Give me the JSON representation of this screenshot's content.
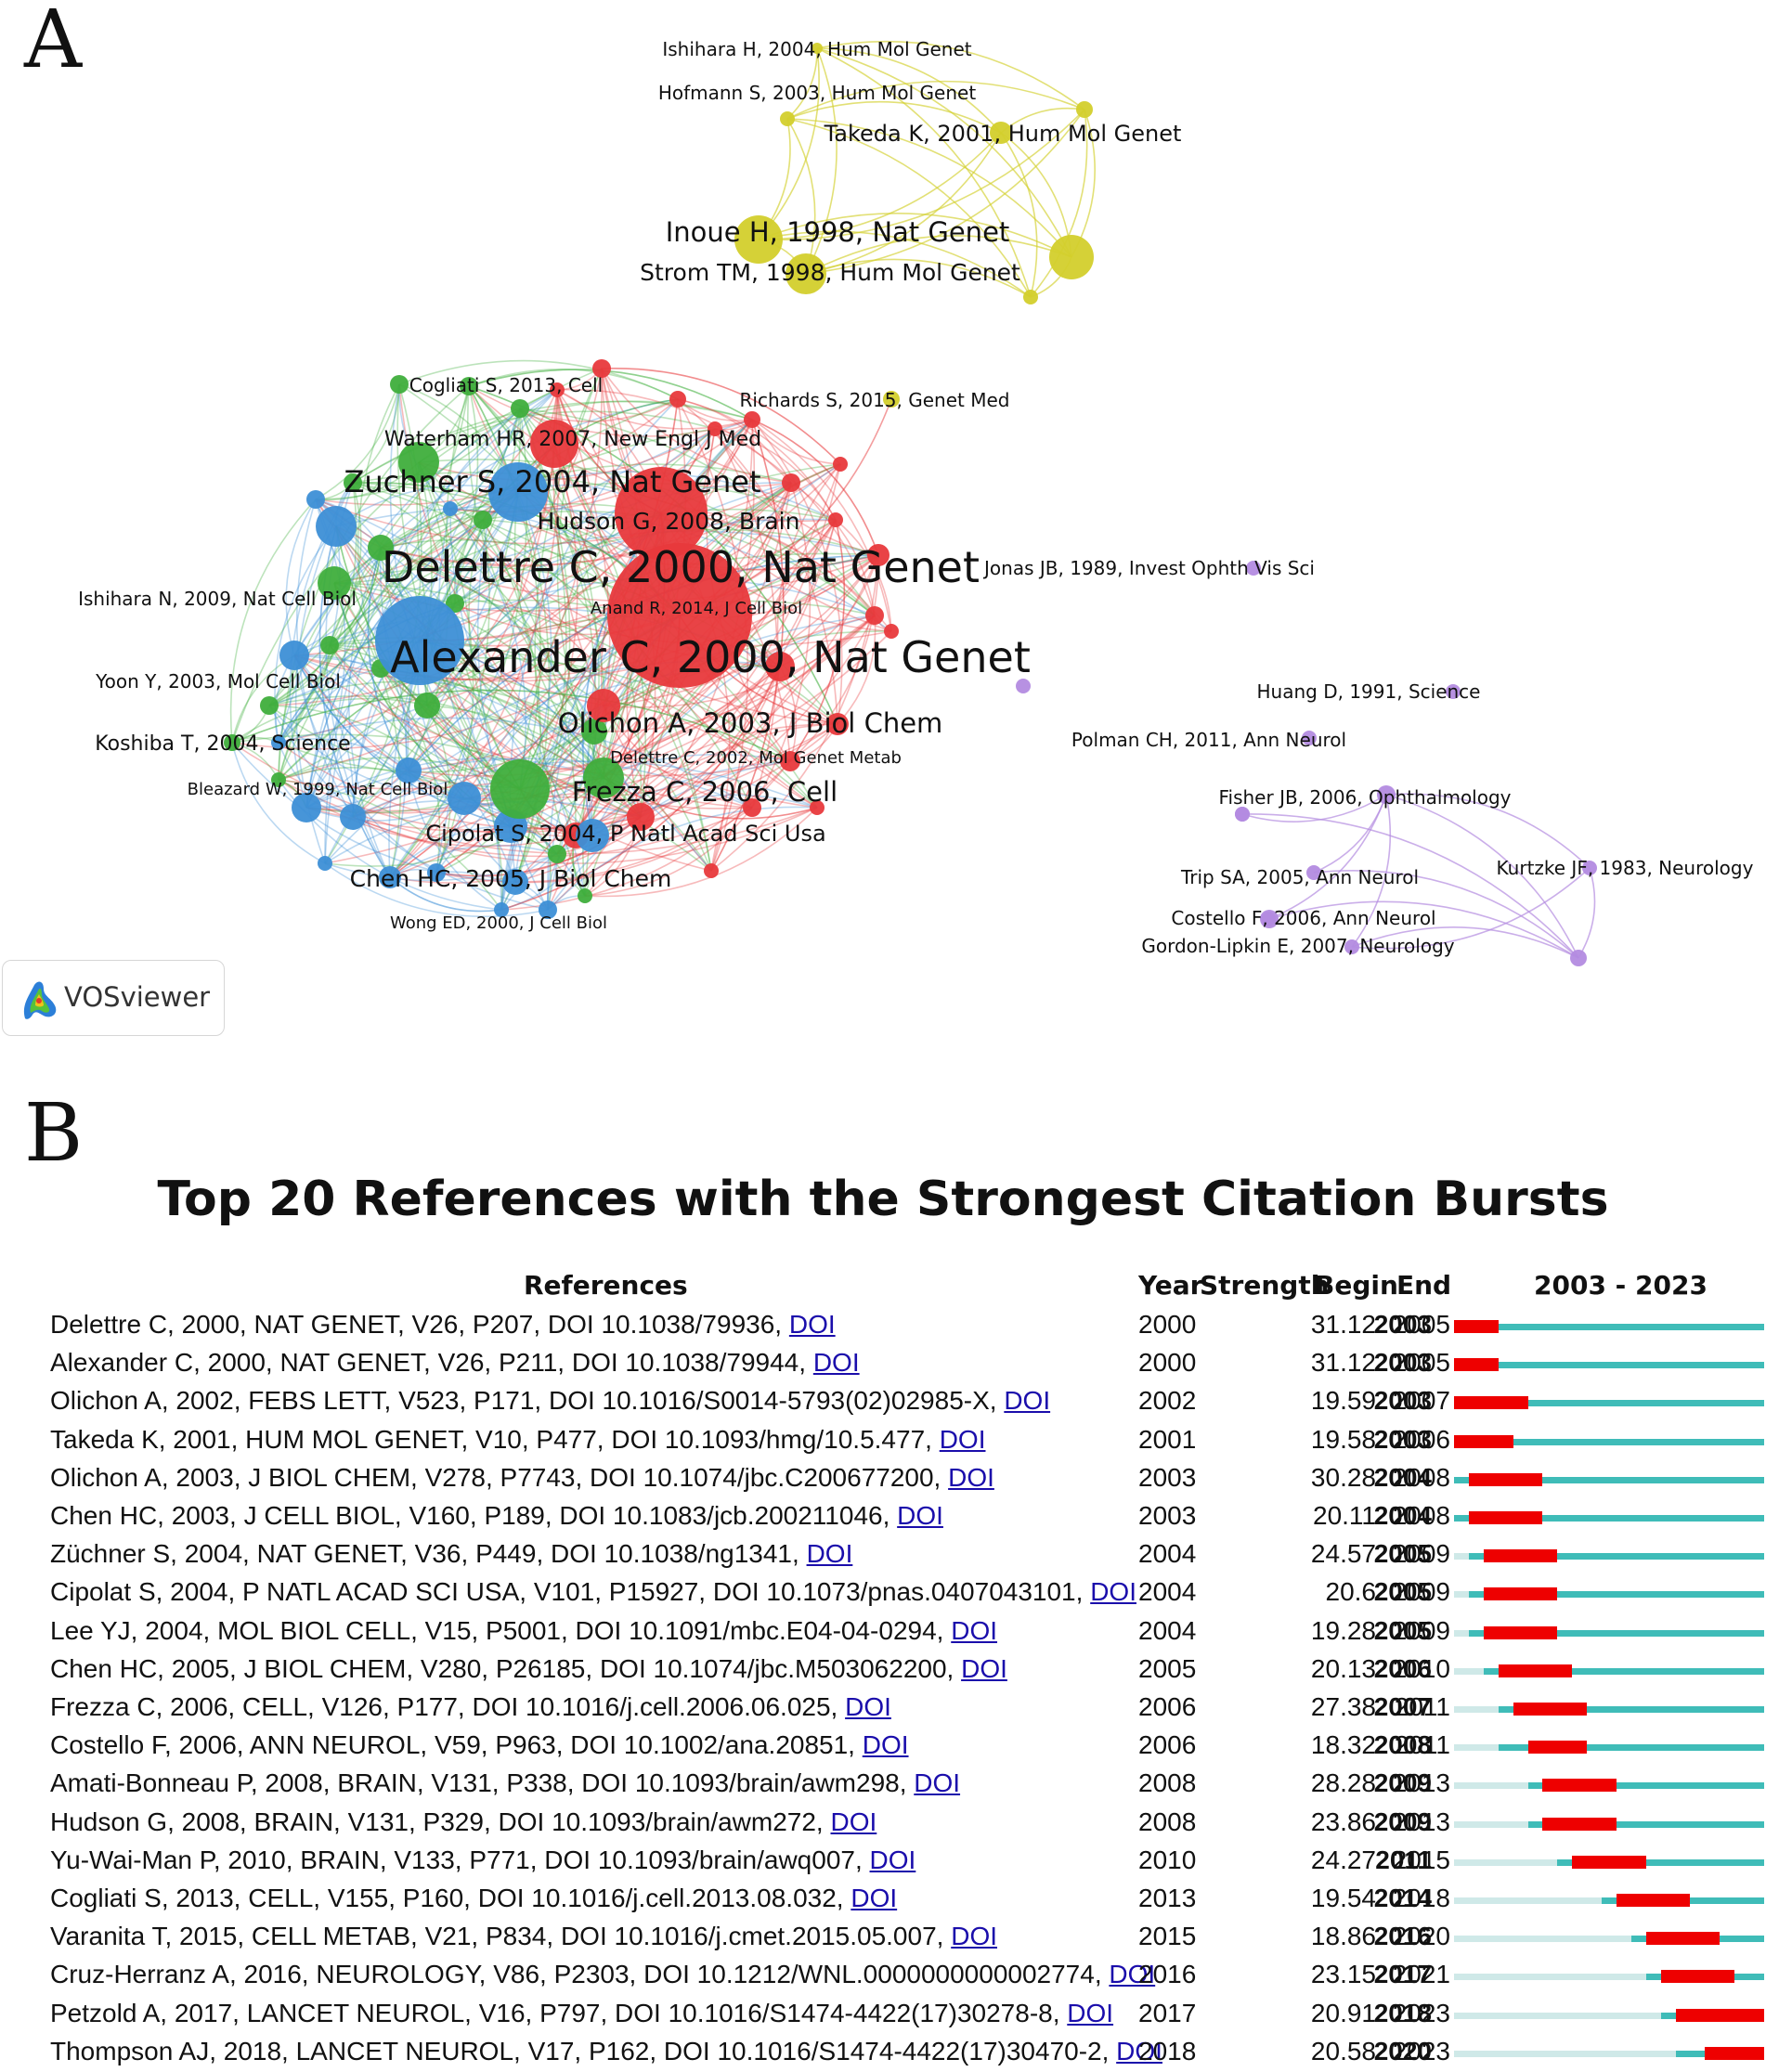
{
  "panel_a": {
    "letter": "A",
    "logo_text": "VOSviewer",
    "clusters": {
      "red": "#e8393c",
      "green": "#3fae3c",
      "blue": "#3d8fd6",
      "yellow": "#d3cf2c",
      "purple": "#b38be0"
    },
    "labels": [
      {
        "text": "Ishihara H, 2004, Hum Mol Genet",
        "size": "s"
      },
      {
        "text": "Hofmann S, 2003, Hum Mol Genet",
        "size": "s"
      },
      {
        "text": "Takeda K, 2001, Hum Mol Genet",
        "size": "m"
      },
      {
        "text": "Inoue H, 1998, Nat Genet",
        "size": "l"
      },
      {
        "text": "Strom TM, 1998, Hum Mol Genet",
        "size": "m2"
      },
      {
        "text": "Cogliati S, 2013, Cell",
        "size": "s"
      },
      {
        "text": "Richards S, 2015, Genet Med",
        "size": "s"
      },
      {
        "text": "Waterham HR, 2007, New Engl J Med",
        "size": "s2"
      },
      {
        "text": "Zuchner S, 2004, Nat Genet",
        "size": "l2"
      },
      {
        "text": "Hudson G, 2008, Brain",
        "size": "m2"
      },
      {
        "text": "Delettre C, 2000, Nat Genet",
        "size": "xl"
      },
      {
        "text": "Jonas JB, 1989, Invest Ophth Vis Sci",
        "size": "s"
      },
      {
        "text": "Ishihara N, 2009, Nat Cell Biol",
        "size": "s"
      },
      {
        "text": "Anand R, 2014, J Cell Biol",
        "size": "xs"
      },
      {
        "text": "Alexander C, 2000, Nat Genet",
        "size": "xl"
      },
      {
        "text": "Yoon Y, 2003, Mol Cell Biol",
        "size": "s"
      },
      {
        "text": "Huang D, 1991, Science",
        "size": "s"
      },
      {
        "text": "Olichon A, 2003, J Biol Chem",
        "size": "l"
      },
      {
        "text": "Polman CH, 2011, Ann Neurol",
        "size": "s"
      },
      {
        "text": "Koshiba T, 2004, Science",
        "size": "s2"
      },
      {
        "text": "Delettre C, 2002, Mol Genet Metab",
        "size": "xs"
      },
      {
        "text": "Bleazard W, 1999, Nat Cell Biol",
        "size": "xs"
      },
      {
        "text": "Frezza C, 2006, Cell",
        "size": "l"
      },
      {
        "text": "Fisher JB, 2006, Ophthalmology",
        "size": "s"
      },
      {
        "text": "Cipolat S, 2004, P Natl Acad Sci Usa",
        "size": "m"
      },
      {
        "text": "Kurtzke JF, 1983, Neurology",
        "size": "s"
      },
      {
        "text": "Chen HC, 2005, J Biol Chem",
        "size": "m2"
      },
      {
        "text": "Trip SA, 2005, Ann Neurol",
        "size": "s"
      },
      {
        "text": "Costello F, 2006, Ann Neurol",
        "size": "s"
      },
      {
        "text": "Wong ED, 2000, J Cell Biol",
        "size": "xs"
      },
      {
        "text": "Gordon-Lipkin E, 2007, Neurology",
        "size": "s"
      }
    ]
  },
  "panel_b": {
    "letter": "B",
    "title": "Top 20 References with the Strongest Citation Bursts",
    "headers": {
      "references": "References",
      "year": "Year",
      "strength": "Strength",
      "begin": "Begin",
      "end": "End",
      "range": "2003 - 2023"
    },
    "link_text": "DOI",
    "colors": {
      "burst": "#ee0000",
      "active": "#3fbcb8",
      "before": "#cfe9e8"
    }
  },
  "chart_data": {
    "type": "table",
    "title": "Top 20 References with the Strongest Citation Bursts",
    "timeline_range": [
      2003,
      2023
    ],
    "columns": [
      "References",
      "Year",
      "Strength",
      "Begin",
      "End"
    ],
    "rows": [
      {
        "ref": "Delettre C, 2000, NAT GENET, V26, P207, DOI 10.1038/79936,",
        "year": 2000,
        "strength": "31.12",
        "begin": 2003,
        "end": 2005
      },
      {
        "ref": "Alexander C, 2000, NAT GENET, V26, P211, DOI 10.1038/79944,",
        "year": 2000,
        "strength": "31.12",
        "begin": 2003,
        "end": 2005
      },
      {
        "ref": "Olichon A, 2002, FEBS LETT, V523, P171, DOI 10.1016/S0014-5793(02)02985-X,",
        "year": 2002,
        "strength": "19.59",
        "begin": 2003,
        "end": 2007
      },
      {
        "ref": "Takeda K, 2001, HUM MOL GENET, V10, P477, DOI 10.1093/hmg/10.5.477,",
        "year": 2001,
        "strength": "19.58",
        "begin": 2003,
        "end": 2006
      },
      {
        "ref": "Olichon A, 2003, J BIOL CHEM, V278, P7743, DOI 10.1074/jbc.C200677200,",
        "year": 2003,
        "strength": "30.28",
        "begin": 2004,
        "end": 2008
      },
      {
        "ref": "Chen HC, 2003, J CELL BIOL, V160, P189, DOI 10.1083/jcb.200211046,",
        "year": 2003,
        "strength": "20.11",
        "begin": 2004,
        "end": 2008
      },
      {
        "ref": "Züchner S, 2004, NAT GENET, V36, P449, DOI 10.1038/ng1341,",
        "year": 2004,
        "strength": "24.57",
        "begin": 2005,
        "end": 2009
      },
      {
        "ref": "Cipolat S, 2004, P NATL ACAD SCI USA, V101, P15927, DOI 10.1073/pnas.0407043101,",
        "year": 2004,
        "strength": "20.6",
        "begin": 2005,
        "end": 2009
      },
      {
        "ref": "Lee YJ, 2004, MOL BIOL CELL, V15, P5001, DOI 10.1091/mbc.E04-04-0294,",
        "year": 2004,
        "strength": "19.28",
        "begin": 2005,
        "end": 2009
      },
      {
        "ref": "Chen HC, 2005, J BIOL CHEM, V280, P26185, DOI 10.1074/jbc.M503062200,",
        "year": 2005,
        "strength": "20.13",
        "begin": 2006,
        "end": 2010
      },
      {
        "ref": "Frezza C, 2006, CELL, V126, P177, DOI 10.1016/j.cell.2006.06.025,",
        "year": 2006,
        "strength": "27.38",
        "begin": 2007,
        "end": 2011
      },
      {
        "ref": "Costello F, 2006, ANN NEUROL, V59, P963, DOI 10.1002/ana.20851,",
        "year": 2006,
        "strength": "18.32",
        "begin": 2008,
        "end": 2011
      },
      {
        "ref": "Amati-Bonneau P, 2008, BRAIN, V131, P338, DOI 10.1093/brain/awm298,",
        "year": 2008,
        "strength": "28.28",
        "begin": 2009,
        "end": 2013
      },
      {
        "ref": "Hudson G, 2008, BRAIN, V131, P329, DOI 10.1093/brain/awm272,",
        "year": 2008,
        "strength": "23.86",
        "begin": 2009,
        "end": 2013
      },
      {
        "ref": "Yu-Wai-Man P, 2010, BRAIN, V133, P771, DOI 10.1093/brain/awq007,",
        "year": 2010,
        "strength": "24.27",
        "begin": 2011,
        "end": 2015
      },
      {
        "ref": "Cogliati S, 2013, CELL, V155, P160, DOI 10.1016/j.cell.2013.08.032,",
        "year": 2013,
        "strength": "19.54",
        "begin": 2014,
        "end": 2018
      },
      {
        "ref": "Varanita T, 2015, CELL METAB, V21, P834, DOI 10.1016/j.cmet.2015.05.007,",
        "year": 2015,
        "strength": "18.86",
        "begin": 2016,
        "end": 2020
      },
      {
        "ref": "Cruz-Herranz A, 2016, NEUROLOGY, V86, P2303, DOI 10.1212/WNL.0000000000002774,",
        "year": 2016,
        "strength": "23.15",
        "begin": 2017,
        "end": 2021
      },
      {
        "ref": "Petzold A, 2017, LANCET NEUROL, V16, P797, DOI 10.1016/S1474-4422(17)30278-8,",
        "year": 2017,
        "strength": "20.91",
        "begin": 2018,
        "end": 2023
      },
      {
        "ref": "Thompson AJ, 2018, LANCET NEUROL, V17, P162, DOI 10.1016/S1474-4422(17)30470-2,",
        "year": 2018,
        "strength": "20.58",
        "begin": 2020,
        "end": 2023
      }
    ]
  }
}
